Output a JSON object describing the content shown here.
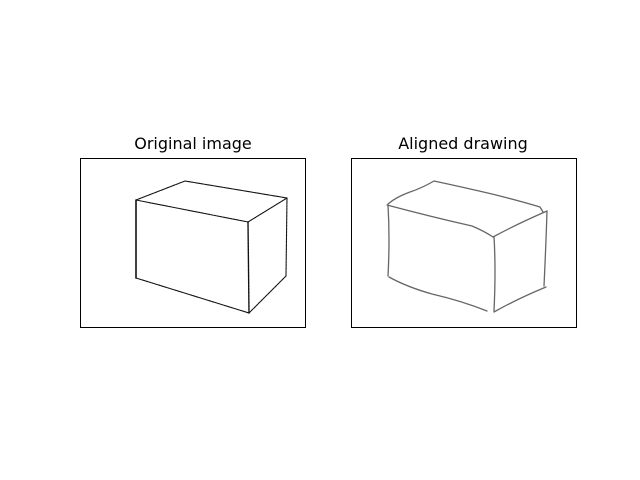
{
  "figure": {
    "panels": [
      {
        "title": "Original image"
      },
      {
        "title": "Aligned drawing"
      }
    ]
  },
  "colors": {
    "background": "#ffffff",
    "border": "#000000",
    "original_stroke": "#111111",
    "aligned_stroke": "#666666"
  }
}
